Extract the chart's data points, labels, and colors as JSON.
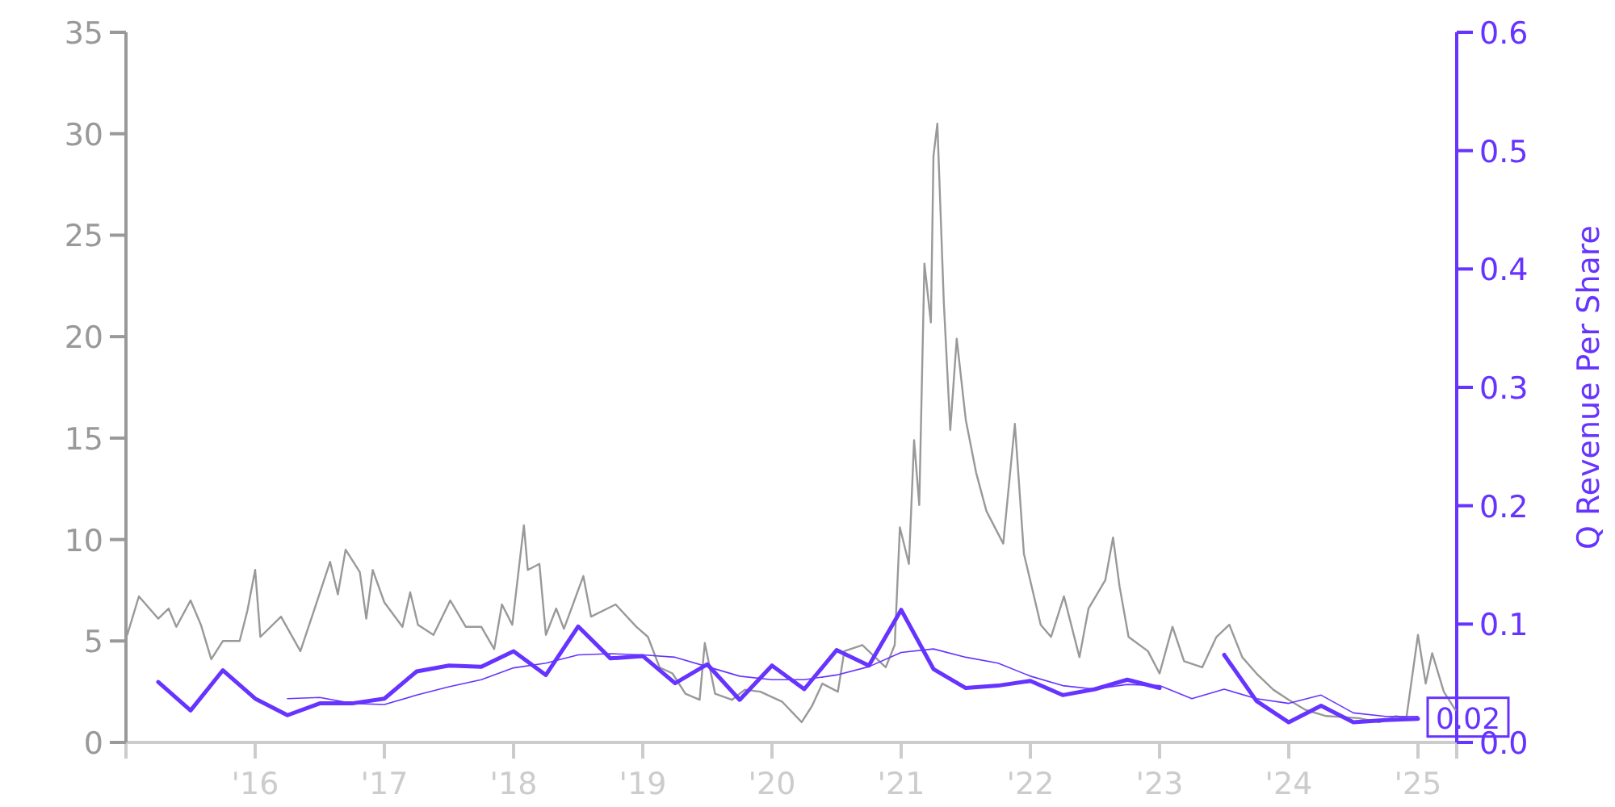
{
  "chart_data": {
    "type": "line",
    "y2label": "Q Revenue Per Share",
    "xlim": [
      2015,
      2025.3
    ],
    "ylim": [
      0,
      35
    ],
    "y2lim": [
      0,
      0.6
    ],
    "xticks": [
      {
        "value": 2016,
        "label": "'16"
      },
      {
        "value": 2017,
        "label": "'17"
      },
      {
        "value": 2018,
        "label": "'18"
      },
      {
        "value": 2019,
        "label": "'19"
      },
      {
        "value": 2020,
        "label": "'20"
      },
      {
        "value": 2021,
        "label": "'21"
      },
      {
        "value": 2022,
        "label": "'22"
      },
      {
        "value": 2023,
        "label": "'23"
      },
      {
        "value": 2024,
        "label": "'24"
      },
      {
        "value": 2025,
        "label": "'25"
      }
    ],
    "yticks": [
      0,
      5,
      10,
      15,
      20,
      25,
      30,
      35
    ],
    "y2ticks": [
      {
        "value": 0,
        "label": "0.0"
      },
      0.1,
      0.2,
      0.3,
      0.4,
      0.5,
      0.6
    ],
    "grid": false,
    "series": [
      {
        "color": "#999999",
        "x": [
          2015.01,
          2015.1,
          2015.25,
          2015.33,
          2015.39,
          2015.5,
          2015.58,
          2015.66,
          2015.75,
          2015.88,
          2015.94,
          2016,
          2016.04,
          2016.2,
          2016.35,
          2016.45,
          2016.58,
          2016.64,
          2016.7,
          2016.81,
          2016.86,
          2016.91,
          2017,
          2017.14,
          2017.2,
          2017.26,
          2017.38,
          2017.51,
          2017.63,
          2017.75,
          2017.85,
          2017.91,
          2017.99,
          2018.08,
          2018.11,
          2018.2,
          2018.25,
          2018.33,
          2018.39,
          2018.54,
          2018.6,
          2018.79,
          2018.95,
          2019.04,
          2019.13,
          2019.23,
          2019.33,
          2019.44,
          2019.48,
          2019.56,
          2019.69,
          2019.79,
          2019.91,
          2020.08,
          2020.23,
          2020.31,
          2020.39,
          2020.51,
          2020.56,
          2020.7,
          2020.88,
          2020.95,
          2020.99,
          2021.06,
          2021.1,
          2021.14,
          2021.18,
          2021.23,
          2021.25,
          2021.28,
          2021.33,
          2021.38,
          2021.43,
          2021.5,
          2021.58,
          2021.66,
          2021.79,
          2021.88,
          2021.95,
          2022.08,
          2022.16,
          2022.26,
          2022.38,
          2022.45,
          2022.58,
          2022.64,
          2022.69,
          2022.76,
          2022.91,
          2023,
          2023.1,
          2023.19,
          2023.33,
          2023.44,
          2023.54,
          2023.64,
          2023.75,
          2023.88,
          2024,
          2024.13,
          2024.29,
          2024.54,
          2024.7,
          2024.83,
          2024.91,
          2025,
          2025.06,
          2025.11,
          2025.2,
          2025.29
        ],
        "values": [
          5.3,
          7.2,
          6.1,
          6.6,
          5.7,
          7.0,
          5.8,
          4.1,
          5.0,
          5.0,
          6.5,
          8.5,
          5.2,
          6.2,
          4.5,
          6.4,
          8.9,
          7.3,
          9.5,
          8.4,
          6.1,
          8.5,
          6.9,
          5.7,
          7.4,
          5.8,
          5.3,
          7.0,
          5.7,
          5.7,
          4.6,
          6.8,
          5.8,
          10.7,
          8.5,
          8.8,
          5.3,
          6.6,
          5.6,
          8.2,
          6.2,
          6.8,
          5.7,
          5.2,
          3.7,
          3.4,
          2.4,
          2.1,
          4.9,
          2.4,
          2.1,
          2.6,
          2.5,
          2.0,
          1.0,
          1.8,
          2.9,
          2.5,
          4.5,
          4.8,
          3.7,
          4.8,
          10.6,
          8.8,
          14.9,
          11.7,
          23.6,
          20.7,
          28.9,
          30.5,
          21.7,
          15.4,
          19.9,
          15.9,
          13.3,
          11.4,
          9.8,
          15.7,
          9.3,
          5.8,
          5.2,
          7.2,
          4.2,
          6.6,
          8.0,
          10.1,
          7.7,
          5.2,
          4.5,
          3.4,
          5.7,
          4.0,
          3.7,
          5.2,
          5.8,
          4.2,
          3.4,
          2.6,
          2.1,
          1.6,
          1.3,
          1.2,
          1.0,
          1.3,
          1.2,
          5.3,
          2.9,
          4.4,
          2.5,
          1.6
        ]
      },
      {
        "axis": "y2",
        "color": "#6633ff",
        "x": [
          2015.25,
          2015.5,
          2015.75,
          2016,
          2016.25,
          2016.5,
          2016.75,
          2017,
          2017.25,
          2017.5,
          2017.75,
          2018,
          2018.25,
          2018.5,
          2018.75,
          2019,
          2019.25,
          2019.5,
          2019.75,
          2020,
          2020.25,
          2020.5,
          2020.75,
          2021,
          2021.25,
          2021.5,
          2021.75,
          2022,
          2022.25,
          2022.5,
          2022.75,
          2023
        ],
        "values": [
          0.051,
          0.027,
          0.061,
          0.037,
          0.023,
          0.033,
          0.033,
          0.037,
          0.06,
          0.065,
          0.064,
          0.077,
          0.057,
          0.098,
          0.071,
          0.073,
          0.05,
          0.066,
          0.036,
          0.065,
          0.045,
          0.078,
          0.065,
          0.112,
          0.062,
          0.046,
          0.048,
          0.052,
          0.04,
          0.045,
          0.053,
          0.046
        ]
      },
      {
        "axis": "y2",
        "color": "#6633ff",
        "x": [
          2023.5,
          2023.75,
          2024,
          2024.25,
          2024.5,
          2024.75,
          2025
        ],
        "values": [
          0.074,
          0.035,
          0.017,
          0.031,
          0.017,
          0.019,
          0.02
        ],
        "value_labels": [
          null,
          null,
          null,
          null,
          null,
          null,
          "0.02"
        ]
      },
      {
        "axis": "y2",
        "color": "#6633ff",
        "x": [
          2016.25,
          2016.5,
          2016.75,
          2017,
          2017.25,
          2017.5,
          2017.75,
          2018,
          2018.25,
          2018.5,
          2018.75,
          2019,
          2019.25,
          2019.5,
          2019.75,
          2020,
          2020.25,
          2020.5,
          2020.75,
          2021,
          2021.25,
          2021.5,
          2021.75,
          2022,
          2022.25,
          2022.5,
          2022.75,
          2023,
          2023.25,
          2023.5,
          2023.75,
          2024,
          2024.25,
          2024.5,
          2024.75,
          2025
        ],
        "values": [
          0.037,
          0.038,
          0.033,
          0.032,
          0.04,
          0.047,
          0.053,
          0.063,
          0.067,
          0.074,
          0.075,
          0.074,
          0.072,
          0.064,
          0.056,
          0.053,
          0.053,
          0.057,
          0.064,
          0.076,
          0.079,
          0.072,
          0.067,
          0.056,
          0.048,
          0.045,
          0.049,
          0.048,
          0.037,
          0.045,
          0.037,
          0.033,
          0.04,
          0.025,
          0.022,
          0.022
        ]
      }
    ]
  }
}
